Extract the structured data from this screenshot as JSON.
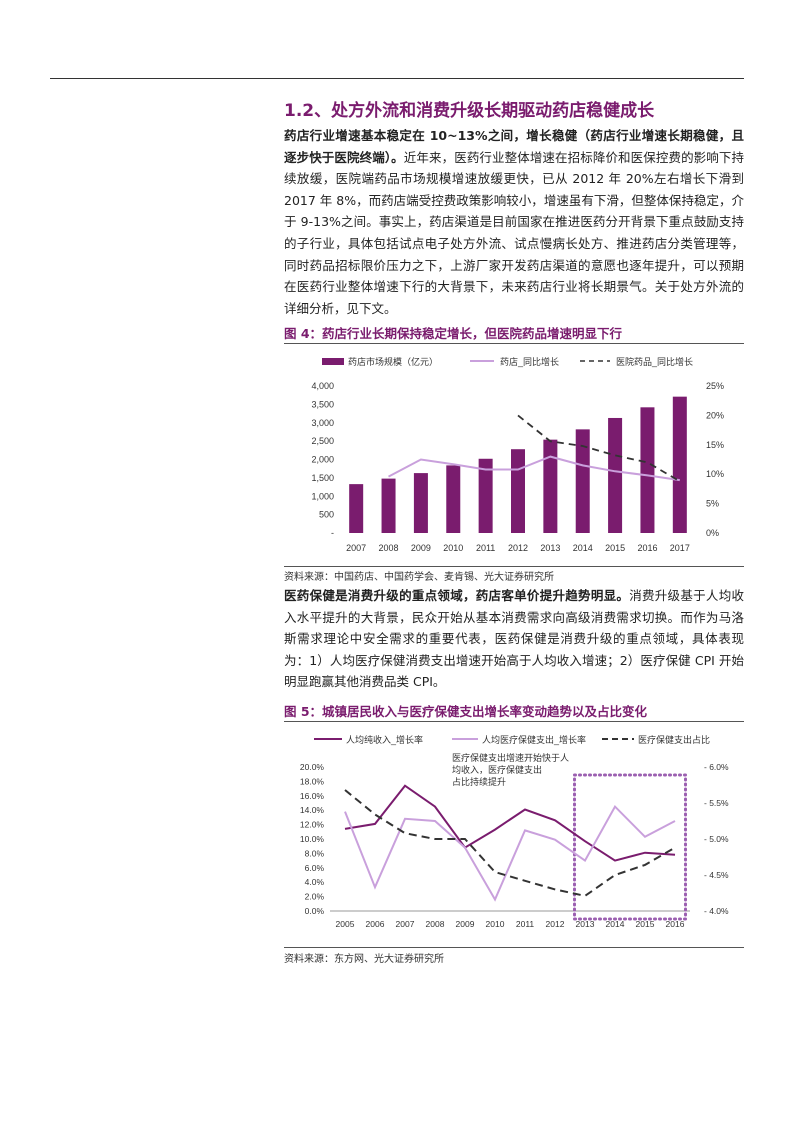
{
  "section": {
    "title": "1.2、处方外流和消费升级长期驱动药店稳健成长"
  },
  "para1": {
    "lead": "药店行业增速基本稳定在 10~13%之间，增长稳健（药店行业增速长期稳健，且逐步快于医院终端）。",
    "body": "近年来，医药行业整体增速在招标降价和医保控费的影响下持续放缓，医院端药品市场规模增速放缓更快，已从 2012 年 20%左右增长下滑到 2017 年 8%，而药店端受控费政策影响较小，增速虽有下滑，但整体保持稳定，介于 9-13%之间。事实上，药店渠道是目前国家在推进医药分开背景下重点鼓励支持的子行业，具体包括试点电子处方外流、试点慢病长处方、推进药店分类管理等，同时药品招标限价压力之下，上游厂家开发药店渠道的意愿也逐年提升，可以预期在医药行业整体增速下行的大背景下，未来药店行业将长期景气。关于处方外流的详细分析，见下文。"
  },
  "fig4": {
    "caption": "图 4：药店行业长期保持稳定增长，但医院药品增速明显下行",
    "source": "资料来源：中国药店、中国药学会、麦肯锡、光大证券研究所"
  },
  "para2": {
    "lead": "医药保健是消费升级的重点领域，药店客单价提升趋势明显。",
    "body": "消费升级基于人均收入水平提升的大背景，民众开始从基本消费需求向高级消费需求切换。而作为马洛斯需求理论中安全需求的重要代表，医药保健是消费升级的重点领域，具体表现为：1）人均医疗保健消费支出增速开始高于人均收入增速；2）医疗保健 CPI 开始明显跑赢其他消费品类 CPI。"
  },
  "fig5": {
    "caption": "图 5：城镇居民收入与医疗保健支出增长率变动趋势以及占比变化",
    "source": "资料来源：东方网、光大证券研究所"
  },
  "chart_data": [
    {
      "type": "bar",
      "categories": [
        "2007",
        "2008",
        "2009",
        "2010",
        "2011",
        "2012",
        "2013",
        "2014",
        "2015",
        "2016",
        "2017"
      ],
      "series": [
        {
          "name": "药店市场规模（亿元）",
          "kind": "bar",
          "axis": "left",
          "color": "#7a1c6e",
          "values": [
            1330,
            1480,
            1630,
            1840,
            2020,
            2280,
            2540,
            2820,
            3130,
            3420,
            3710
          ]
        },
        {
          "name": "药店_同比增长",
          "kind": "line",
          "axis": "right",
          "color": "#c9a0dc",
          "values": [
            null,
            0.096,
            0.125,
            0.117,
            0.108,
            0.108,
            0.13,
            0.115,
            0.105,
            0.098,
            0.09
          ]
        },
        {
          "name": "医院药品_同比增长",
          "kind": "line",
          "dash": true,
          "axis": "right",
          "color": "#333333",
          "values": [
            null,
            null,
            null,
            null,
            null,
            0.2,
            0.156,
            0.148,
            0.132,
            0.12,
            0.088
          ]
        }
      ],
      "ylim": [
        0,
        4000
      ],
      "yticks": [
        "-",
        "500",
        "1,000",
        "1,500",
        "2,000",
        "2,500",
        "3,000",
        "3,500",
        "4,000"
      ],
      "y2lim": [
        0,
        0.25
      ],
      "y2ticks": [
        "0%",
        "5%",
        "10%",
        "15%",
        "20%",
        "25%"
      ],
      "legend": "top"
    },
    {
      "type": "line",
      "categories": [
        "2005",
        "2006",
        "2007",
        "2008",
        "2009",
        "2010",
        "2011",
        "2012",
        "2013",
        "2014",
        "2015",
        "2016"
      ],
      "series": [
        {
          "name": "人均纯收入_增长率",
          "axis": "left",
          "color": "#7a1c6e",
          "values": [
            0.114,
            0.121,
            0.174,
            0.145,
            0.088,
            0.113,
            0.141,
            0.126,
            0.097,
            0.07,
            0.081,
            0.078
          ]
        },
        {
          "name": "人均医疗保健支出_增长率",
          "axis": "left",
          "color": "#c9a0dc",
          "values": [
            0.138,
            0.033,
            0.128,
            0.125,
            0.088,
            0.016,
            0.112,
            0.099,
            0.07,
            0.145,
            0.103,
            0.125
          ]
        },
        {
          "name": "医疗保健支出占比",
          "axis": "right",
          "dash": true,
          "color": "#333333",
          "values": [
            0.0568,
            0.0534,
            0.0508,
            0.05,
            0.05,
            0.0454,
            0.0442,
            0.043,
            0.0421,
            0.045,
            0.0464,
            0.0488
          ]
        }
      ],
      "ylim": [
        0,
        0.2
      ],
      "yticks": [
        "0.0%",
        "2.0%",
        "4.0%",
        "6.0%",
        "8.0%",
        "10.0%",
        "12.0%",
        "14.0%",
        "16.0%",
        "18.0%",
        "20.0%"
      ],
      "y2lim": [
        0.04,
        0.06
      ],
      "y2ticks": [
        "4.0%",
        "4.5%",
        "5.0%",
        "5.5%",
        "6.0%"
      ],
      "annotation": "医疗保健支出增速开始快于人均收入，医疗保健支出占比持续提升",
      "legend": "top"
    }
  ]
}
